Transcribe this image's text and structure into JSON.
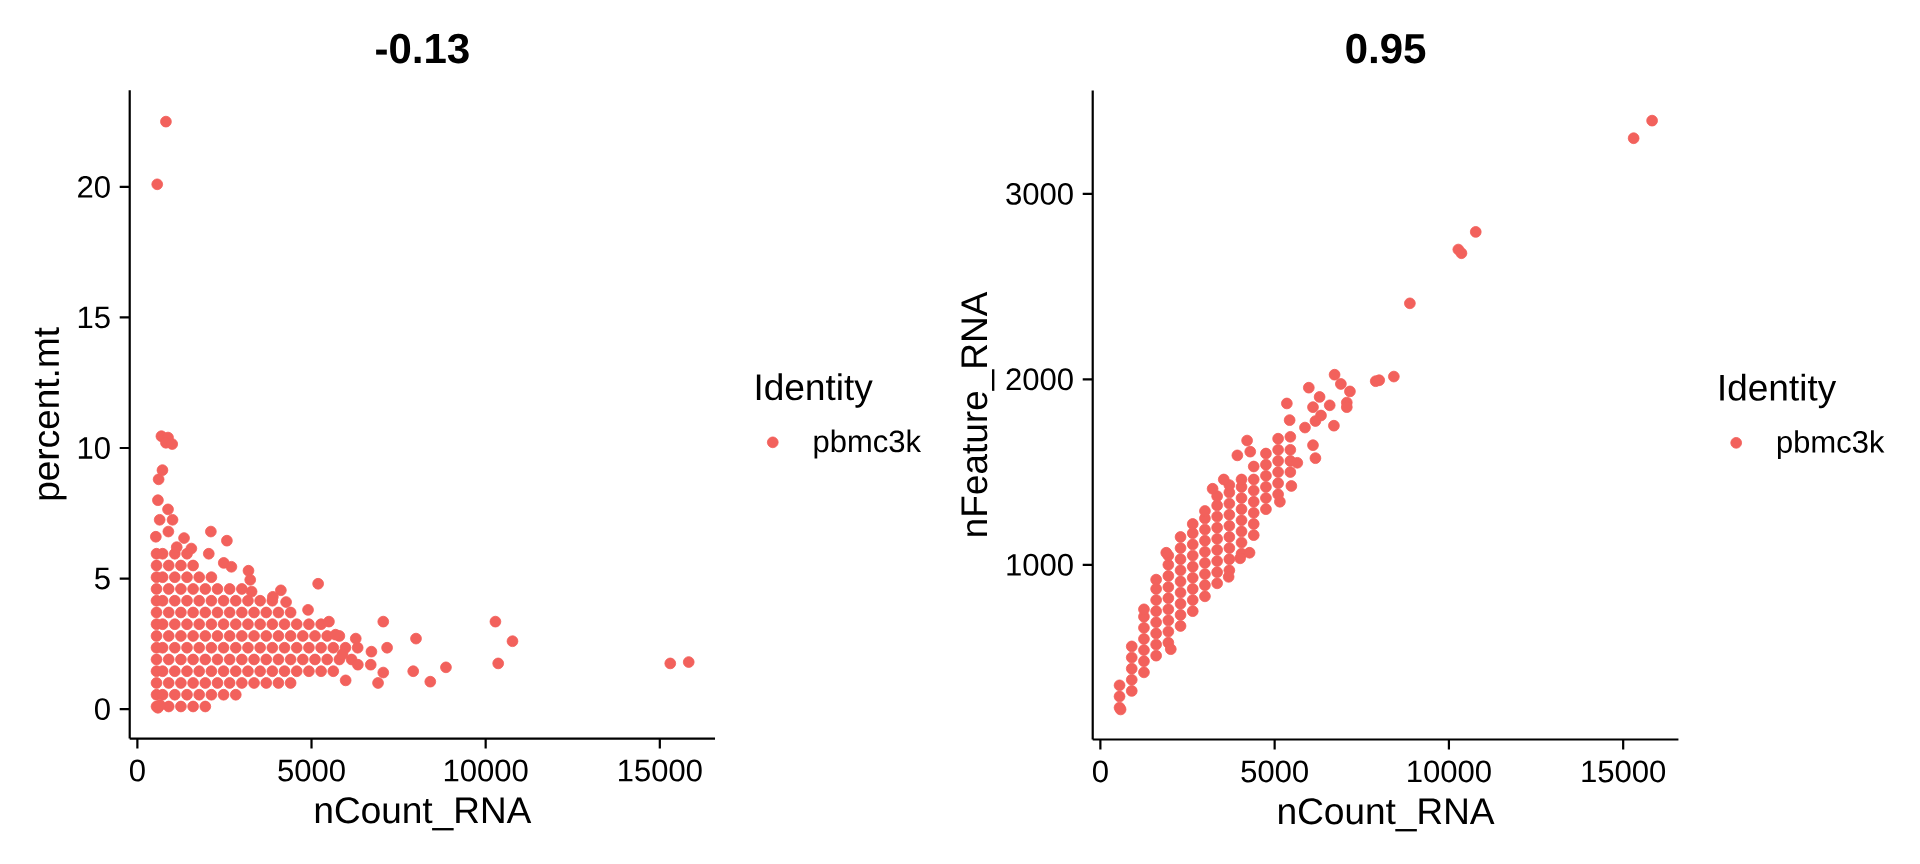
{
  "chart_data": [
    {
      "type": "scatter",
      "title": "-0.13",
      "xlabel": "nCount_RNA",
      "ylabel": "percent.mt",
      "legend_title": "Identity",
      "legend": "right",
      "marker": "circle",
      "xlim": [
        -220,
        16585
      ],
      "ylim": [
        -1.13,
        23.7
      ],
      "xticks": [
        0,
        5000,
        10000,
        15000
      ],
      "yticks": [
        0,
        5,
        10,
        15,
        20
      ],
      "series": [
        {
          "name": "pbmc3k",
          "color": "#f2615c",
          "x": [
            550,
            900,
            1250,
            1600,
            1950,
            550,
            725,
            1075,
            1425,
            1775,
            2125,
            2475,
            2825,
            550,
            900,
            1250,
            1600,
            1950,
            2300,
            2650,
            3000,
            3350,
            3700,
            4050,
            4400,
            550,
            725,
            1075,
            1425,
            1775,
            2125,
            2475,
            2825,
            3175,
            3525,
            3875,
            4225,
            4575,
            4925,
            5275,
            5625,
            550,
            900,
            1250,
            1600,
            1950,
            2300,
            2650,
            3000,
            3350,
            3700,
            4050,
            4400,
            4750,
            5100,
            5450,
            5800,
            6150,
            550,
            725,
            1075,
            1425,
            1775,
            2125,
            2475,
            2825,
            3175,
            3525,
            3875,
            4225,
            4575,
            4925,
            5275,
            5625,
            5975,
            6325,
            550,
            900,
            1250,
            1600,
            1950,
            2300,
            2650,
            3000,
            3350,
            3700,
            4050,
            4400,
            4750,
            5100,
            5450,
            5800,
            550,
            725,
            1075,
            1425,
            1775,
            2125,
            2475,
            2825,
            3175,
            3525,
            3875,
            4225,
            4575,
            4925,
            5275,
            550,
            900,
            1250,
            1600,
            1950,
            2300,
            2650,
            3000,
            3350,
            3700,
            4050,
            4400,
            550,
            725,
            1075,
            1425,
            1775,
            2125,
            2475,
            2825,
            3175,
            3525,
            3875,
            550,
            900,
            1250,
            1600,
            1950,
            2300,
            2650,
            3000,
            550,
            725,
            1075,
            1425,
            1775,
            2125,
            550,
            900,
            1250,
            1600,
            550,
            725,
            1075,
            1425,
            820,
            570,
            690,
            880,
            820,
            1000,
            720,
            610,
            590,
            880,
            640,
            1010,
            890,
            530,
            1340,
            2110,
            2570,
            1130,
            1550,
            2050,
            2480,
            2700,
            3190,
            3240,
            3280,
            5190,
            4120,
            3890,
            4270,
            4900,
            5500,
            7060,
            10280,
            10770,
            8000,
            7170,
            6720,
            6270,
            10360,
            8860,
            7920,
            7060,
            6910,
            8410,
            5980,
            6700,
            6330,
            15300,
            15830,
            5690,
            5890,
            590,
            650
          ],
          "values": [
            0.1,
            0.1,
            0.1,
            0.1,
            0.1,
            0.55,
            0.55,
            0.55,
            0.55,
            0.55,
            0.55,
            0.55,
            0.55,
            1.0,
            1.0,
            1.0,
            1.0,
            1.0,
            1.0,
            1.0,
            1.0,
            1.0,
            1.0,
            1.0,
            1.0,
            1.45,
            1.45,
            1.45,
            1.45,
            1.45,
            1.45,
            1.45,
            1.45,
            1.45,
            1.45,
            1.45,
            1.45,
            1.45,
            1.45,
            1.45,
            1.45,
            1.9,
            1.9,
            1.9,
            1.9,
            1.9,
            1.9,
            1.9,
            1.9,
            1.9,
            1.9,
            1.9,
            1.9,
            1.9,
            1.9,
            1.9,
            1.9,
            1.9,
            2.35,
            2.35,
            2.35,
            2.35,
            2.35,
            2.35,
            2.35,
            2.35,
            2.35,
            2.35,
            2.35,
            2.35,
            2.35,
            2.35,
            2.35,
            2.35,
            2.35,
            2.35,
            2.8,
            2.8,
            2.8,
            2.8,
            2.8,
            2.8,
            2.8,
            2.8,
            2.8,
            2.8,
            2.8,
            2.8,
            2.8,
            2.8,
            2.8,
            2.8,
            3.25,
            3.25,
            3.25,
            3.25,
            3.25,
            3.25,
            3.25,
            3.25,
            3.25,
            3.25,
            3.25,
            3.25,
            3.25,
            3.25,
            3.25,
            3.7,
            3.7,
            3.7,
            3.7,
            3.7,
            3.7,
            3.7,
            3.7,
            3.7,
            3.7,
            3.7,
            3.7,
            4.15,
            4.15,
            4.15,
            4.15,
            4.15,
            4.15,
            4.15,
            4.15,
            4.15,
            4.15,
            4.15,
            4.6,
            4.6,
            4.6,
            4.6,
            4.6,
            4.6,
            4.6,
            4.6,
            5.05,
            5.05,
            5.05,
            5.05,
            5.05,
            5.05,
            5.5,
            5.5,
            5.5,
            5.5,
            5.95,
            5.95,
            5.95,
            5.95,
            22.5,
            20.1,
            10.45,
            10.4,
            10.2,
            10.15,
            9.15,
            8.8,
            8.0,
            7.65,
            7.25,
            7.25,
            6.8,
            6.6,
            6.55,
            6.8,
            6.45,
            6.2,
            6.15,
            5.95,
            5.6,
            5.45,
            5.3,
            4.95,
            4.5,
            4.8,
            4.55,
            4.3,
            4.1,
            3.8,
            3.35,
            3.35,
            3.35,
            2.6,
            2.7,
            2.35,
            2.2,
            2.7,
            1.75,
            1.6,
            1.45,
            1.4,
            1.0,
            1.05,
            1.1,
            1.7,
            1.7,
            1.75,
            1.8,
            2.85,
            2.1,
            0.05,
            0.15
          ]
        }
      ]
    },
    {
      "type": "scatter",
      "title": "0.95",
      "xlabel": "nCount_RNA",
      "ylabel": "nFeature_RNA",
      "legend_title": "Identity",
      "legend": "right",
      "marker": "circle",
      "xlim": [
        -220,
        16585
      ],
      "ylim": [
        58,
        3558
      ],
      "xticks": [
        0,
        5000,
        10000,
        15000
      ],
      "yticks": [
        1000,
        2000,
        3000
      ],
      "series": [
        {
          "name": "pbmc3k",
          "color": "#f2615c",
          "x": [
            550,
            550,
            550,
            900,
            900,
            900,
            900,
            900,
            1250,
            1250,
            1250,
            1250,
            1250,
            1250,
            1250,
            1600,
            1600,
            1600,
            1600,
            1600,
            1600,
            1600,
            1600,
            1950,
            1950,
            1950,
            1950,
            1950,
            1950,
            1950,
            1950,
            1950,
            2300,
            2300,
            2300,
            2300,
            2300,
            2300,
            2300,
            2300,
            2300,
            2650,
            2650,
            2650,
            2650,
            2650,
            2650,
            2650,
            2650,
            2650,
            3000,
            3000,
            3000,
            3000,
            3000,
            3000,
            3000,
            3000,
            3000,
            3350,
            3350,
            3350,
            3350,
            3350,
            3350,
            3350,
            3350,
            3350,
            3700,
            3700,
            3700,
            3700,
            3700,
            3700,
            3700,
            3700,
            3700,
            4050,
            4050,
            4050,
            4050,
            4050,
            4050,
            4050,
            4050,
            4400,
            4400,
            4400,
            4400,
            4400,
            4400,
            4400,
            4750,
            4750,
            4750,
            4750,
            4750,
            4750,
            5100,
            5100,
            5100,
            5100,
            5100,
            5100,
            5450,
            5450,
            5450,
            5450,
            15830,
            15300,
            10770,
            10270,
            10360,
            8880,
            8420,
            8000,
            7900,
            6720,
            6900,
            7160,
            5980,
            6290,
            6580,
            7070,
            7070,
            5350,
            6100,
            6330,
            6170,
            5870,
            6700,
            5430,
            6170,
            6100,
            5650,
            5480,
            5150,
            4210,
            3930,
            4300,
            3220,
            3540,
            4280,
            4010,
            3680,
            2020,
            580,
            1890
          ],
          "values": [
            230,
            290,
            350,
            320,
            380,
            440,
            500,
            560,
            420,
            480,
            540,
            600,
            660,
            720,
            760,
            510,
            570,
            630,
            690,
            750,
            810,
            870,
            920,
            580,
            640,
            700,
            760,
            820,
            880,
            940,
            1000,
            1050,
            670,
            730,
            790,
            850,
            910,
            970,
            1030,
            1090,
            1150,
            750,
            810,
            870,
            930,
            990,
            1050,
            1110,
            1170,
            1220,
            830,
            890,
            950,
            1010,
            1070,
            1130,
            1190,
            1250,
            1290,
            900,
            960,
            1020,
            1080,
            1140,
            1200,
            1260,
            1320,
            1370,
            970,
            1030,
            1090,
            1150,
            1210,
            1270,
            1330,
            1390,
            1430,
            1060,
            1120,
            1180,
            1240,
            1300,
            1360,
            1420,
            1460,
            1160,
            1220,
            1280,
            1340,
            1400,
            1460,
            1530,
            1300,
            1360,
            1420,
            1480,
            1540,
            1600,
            1380,
            1440,
            1500,
            1560,
            1620,
            1680,
            1500,
            1560,
            1620,
            1690,
            3395,
            3300,
            2795,
            2700,
            2680,
            2410,
            2015,
            1995,
            1990,
            2025,
            1975,
            1935,
            1955,
            1905,
            1860,
            1875,
            1850,
            1870,
            1850,
            1805,
            1775,
            1740,
            1750,
            1780,
            1575,
            1645,
            1550,
            1425,
            1340,
            1670,
            1590,
            1610,
            1410,
            1460,
            1065,
            1035,
            935,
            545,
            220,
            1065
          ]
        }
      ]
    }
  ]
}
